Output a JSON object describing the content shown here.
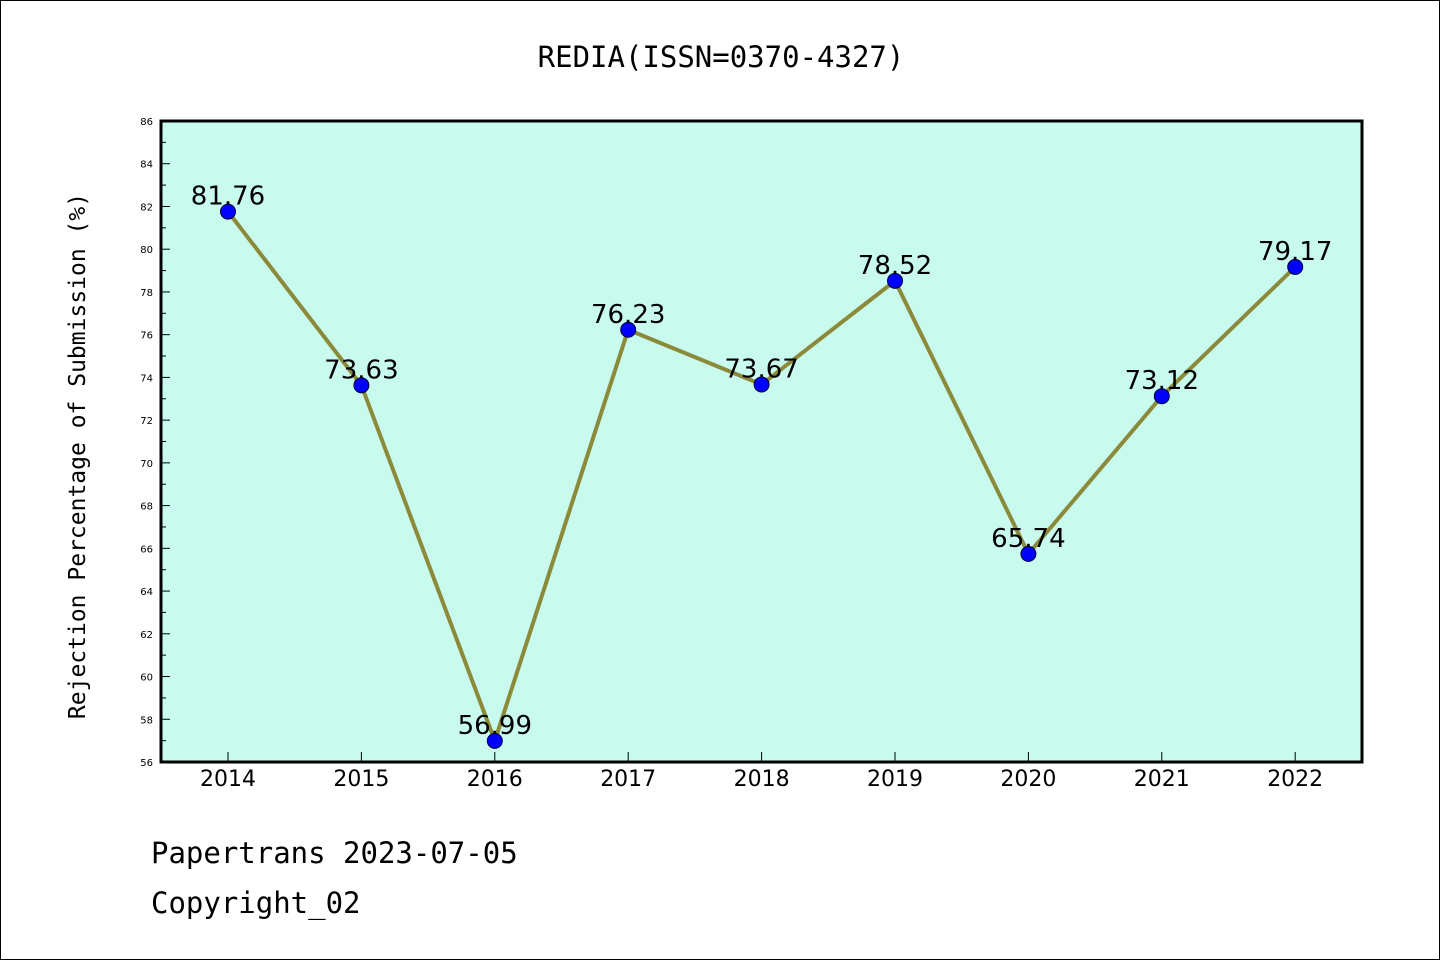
{
  "chart_data": {
    "type": "line",
    "title": "REDIA(ISSN=0370-4327)",
    "xlabel": "",
    "ylabel": "Rejection Percentage of Submission (%)",
    "categories": [
      "2014",
      "2015",
      "2016",
      "2017",
      "2018",
      "2019",
      "2020",
      "2021",
      "2022"
    ],
    "values": [
      81.76,
      73.63,
      56.99,
      76.23,
      73.67,
      78.52,
      65.74,
      73.12,
      79.17
    ],
    "data_labels": [
      "81.76",
      "73.63",
      "56.99",
      "76.23",
      "73.67",
      "78.52",
      "65.74",
      "73.12",
      "79.17"
    ],
    "ylim": [
      56,
      86
    ],
    "y_ticks": [
      "56",
      "58",
      "60",
      "62",
      "64",
      "66",
      "68",
      "70",
      "72",
      "74",
      "76",
      "78",
      "80",
      "82",
      "84",
      "86"
    ],
    "grid": false,
    "legend": "none",
    "colors": {
      "plot_background": "#c8fbee",
      "line": "#8b8a3a",
      "marker": "#0000ff",
      "axes": "#000000"
    }
  },
  "footer": {
    "source": "Papertrans 2023-07-05",
    "copyright": "Copyright_02"
  }
}
